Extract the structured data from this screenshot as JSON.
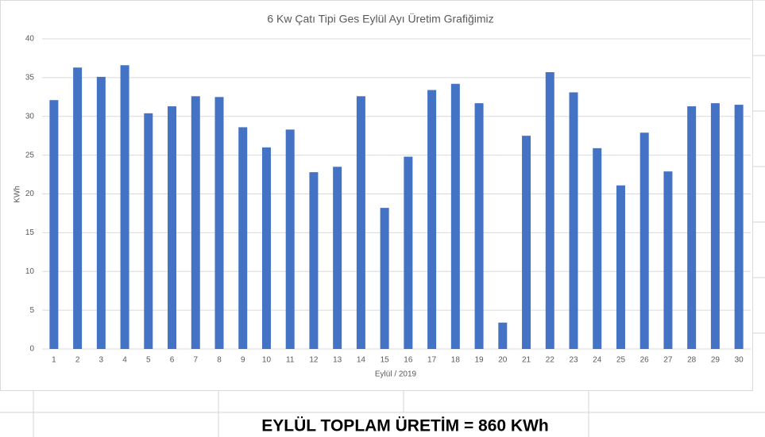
{
  "chart_data": {
    "type": "bar",
    "title": "6 Kw Çatı Tipi Ges Eylül Ayı Üretim Grafiğimiz",
    "x_label": "Eylül / 2019",
    "y_label": "KWh",
    "annotation": "EYLÜL TOPLAM ÜRETİM = 860 KWh",
    "categories": [
      "1",
      "2",
      "3",
      "4",
      "5",
      "6",
      "7",
      "8",
      "9",
      "10",
      "11",
      "12",
      "13",
      "14",
      "15",
      "16",
      "17",
      "18",
      "19",
      "20",
      "21",
      "22",
      "23",
      "24",
      "25",
      "26",
      "27",
      "28",
      "29",
      "30"
    ],
    "values": [
      32.1,
      36.3,
      35.1,
      36.6,
      30.4,
      31.3,
      32.6,
      32.5,
      28.6,
      26.0,
      28.3,
      22.8,
      23.5,
      32.6,
      18.2,
      24.8,
      33.4,
      34.2,
      31.7,
      3.4,
      27.5,
      35.7,
      33.1,
      25.9,
      21.1,
      27.9,
      22.9,
      31.3,
      31.7,
      31.5
    ],
    "color": "#4472c4",
    "ylim": [
      0,
      40
    ],
    "yticks": [
      0,
      5,
      10,
      15,
      20,
      25,
      30,
      35,
      40
    ],
    "grid": true
  }
}
